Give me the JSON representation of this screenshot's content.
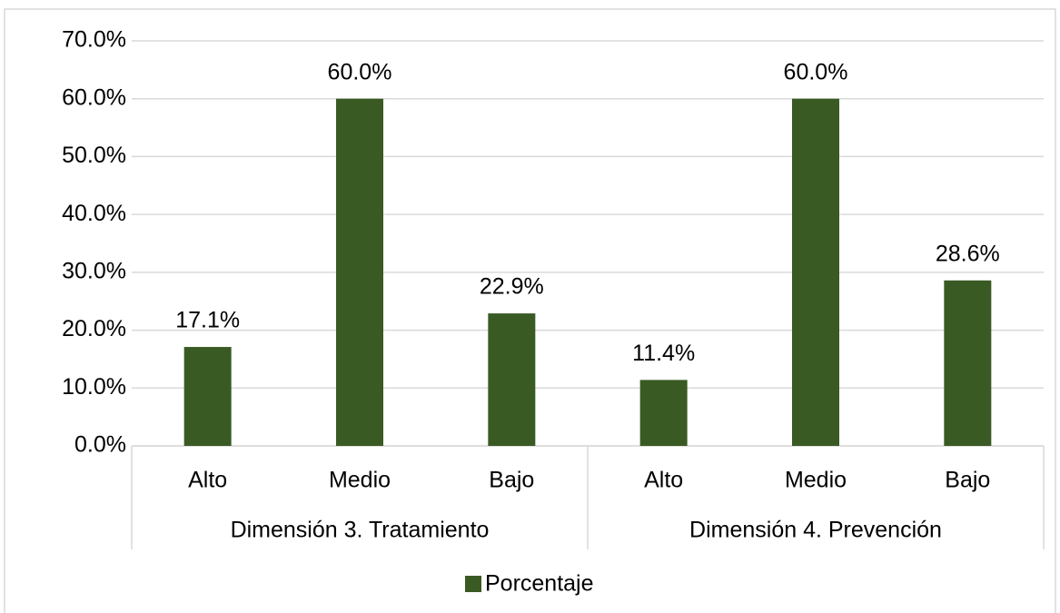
{
  "chart_data": {
    "type": "bar",
    "categories": [
      "Alto",
      "Medio",
      "Bajo",
      "Alto",
      "Medio",
      "Bajo"
    ],
    "category_groups": [
      "Dimensión 3. Tratamiento",
      "Dimensión 4. Prevención"
    ],
    "series": [
      {
        "name": "Porcentaje",
        "color": "#3a5a24",
        "values": [
          17.1,
          60.0,
          22.9,
          11.4,
          60.0,
          28.6
        ],
        "value_labels": [
          "17.1%",
          "60.0%",
          "22.9%",
          "11.4%",
          "60.0%",
          "28.6%"
        ]
      }
    ],
    "ylim": [
      0,
      70
    ],
    "yticks": [
      {
        "value": 0,
        "label": "0.0%"
      },
      {
        "value": 10,
        "label": "10.0%"
      },
      {
        "value": 20,
        "label": "20.0%"
      },
      {
        "value": 30,
        "label": "30.0%"
      },
      {
        "value": 40,
        "label": "40.0%"
      },
      {
        "value": 50,
        "label": "50.0%"
      },
      {
        "value": 60,
        "label": "60.0%"
      },
      {
        "value": 70,
        "label": "70.0%"
      }
    ],
    "grid": true,
    "legend": "bottom"
  }
}
